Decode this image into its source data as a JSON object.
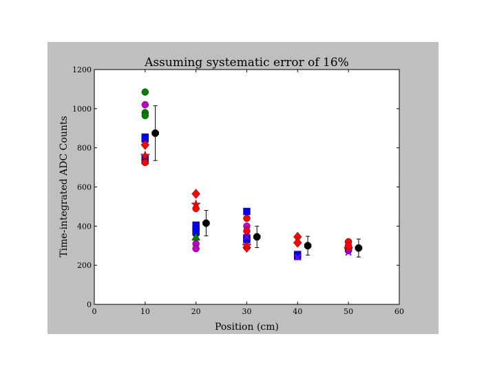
{
  "chart_data": {
    "type": "scatter",
    "title": "Assuming systematic error of 16%",
    "xlabel": "Position (cm)",
    "ylabel": "Time-integrated ADC Counts",
    "xlim": [
      0,
      60
    ],
    "ylim": [
      0,
      1200
    ],
    "xticks": [
      "0",
      "10",
      "20",
      "30",
      "40",
      "50",
      "60"
    ],
    "yticks": [
      "0",
      "200",
      "400",
      "600",
      "800",
      "1000",
      "1200"
    ],
    "grid": false,
    "legend": "none",
    "series": [
      {
        "marker": "circle",
        "color": "#008000",
        "points": [
          [
            10,
            1085
          ],
          [
            10,
            980
          ],
          [
            10,
            965
          ],
          [
            20,
            360
          ],
          [
            30,
            330
          ],
          [
            40,
            250
          ],
          [
            50,
            275
          ]
        ]
      },
      {
        "marker": "circle",
        "color": "#bf00bf",
        "points": [
          [
            10,
            1020
          ],
          [
            20,
            310
          ],
          [
            20,
            285
          ],
          [
            30,
            400
          ],
          [
            40,
            245
          ],
          [
            50,
            275
          ]
        ]
      },
      {
        "marker": "square",
        "color": "#0000ff",
        "points": [
          [
            10,
            855
          ],
          [
            10,
            845
          ],
          [
            10,
            745
          ],
          [
            10,
            735
          ],
          [
            20,
            405
          ],
          [
            20,
            385
          ],
          [
            20,
            370
          ],
          [
            30,
            475
          ],
          [
            30,
            340
          ],
          [
            30,
            330
          ],
          [
            40,
            255
          ],
          [
            40,
            245
          ]
        ]
      },
      {
        "marker": "diamond",
        "color": "#ff0000",
        "points": [
          [
            10,
            815
          ],
          [
            20,
            565
          ],
          [
            30,
            290
          ],
          [
            40,
            345
          ],
          [
            40,
            315
          ],
          [
            50,
            285
          ]
        ]
      },
      {
        "marker": "star",
        "color": "#ff0000",
        "points": [
          [
            10,
            760
          ],
          [
            20,
            510
          ],
          [
            30,
            300
          ],
          [
            50,
            285
          ]
        ]
      },
      {
        "marker": "circle",
        "color": "#ff0000",
        "points": [
          [
            10,
            725
          ],
          [
            20,
            490
          ],
          [
            30,
            440
          ],
          [
            30,
            375
          ],
          [
            50,
            320
          ],
          [
            50,
            300
          ]
        ]
      },
      {
        "marker": "triangle",
        "color": "#008000",
        "points": [
          [
            20,
            345
          ]
        ]
      },
      {
        "marker": "x",
        "color": "#7f00ff",
        "points": [
          [
            30,
            345
          ],
          [
            40,
            240
          ],
          [
            50,
            265
          ]
        ]
      }
    ],
    "average": {
      "marker": "octagon",
      "color": "#000000",
      "points": [
        {
          "x": 12,
          "y": 875,
          "err": 140
        },
        {
          "x": 22,
          "y": 415,
          "err": 65
        },
        {
          "x": 32,
          "y": 345,
          "err": 55
        },
        {
          "x": 42,
          "y": 300,
          "err": 48
        },
        {
          "x": 52,
          "y": 288,
          "err": 46
        }
      ]
    }
  }
}
